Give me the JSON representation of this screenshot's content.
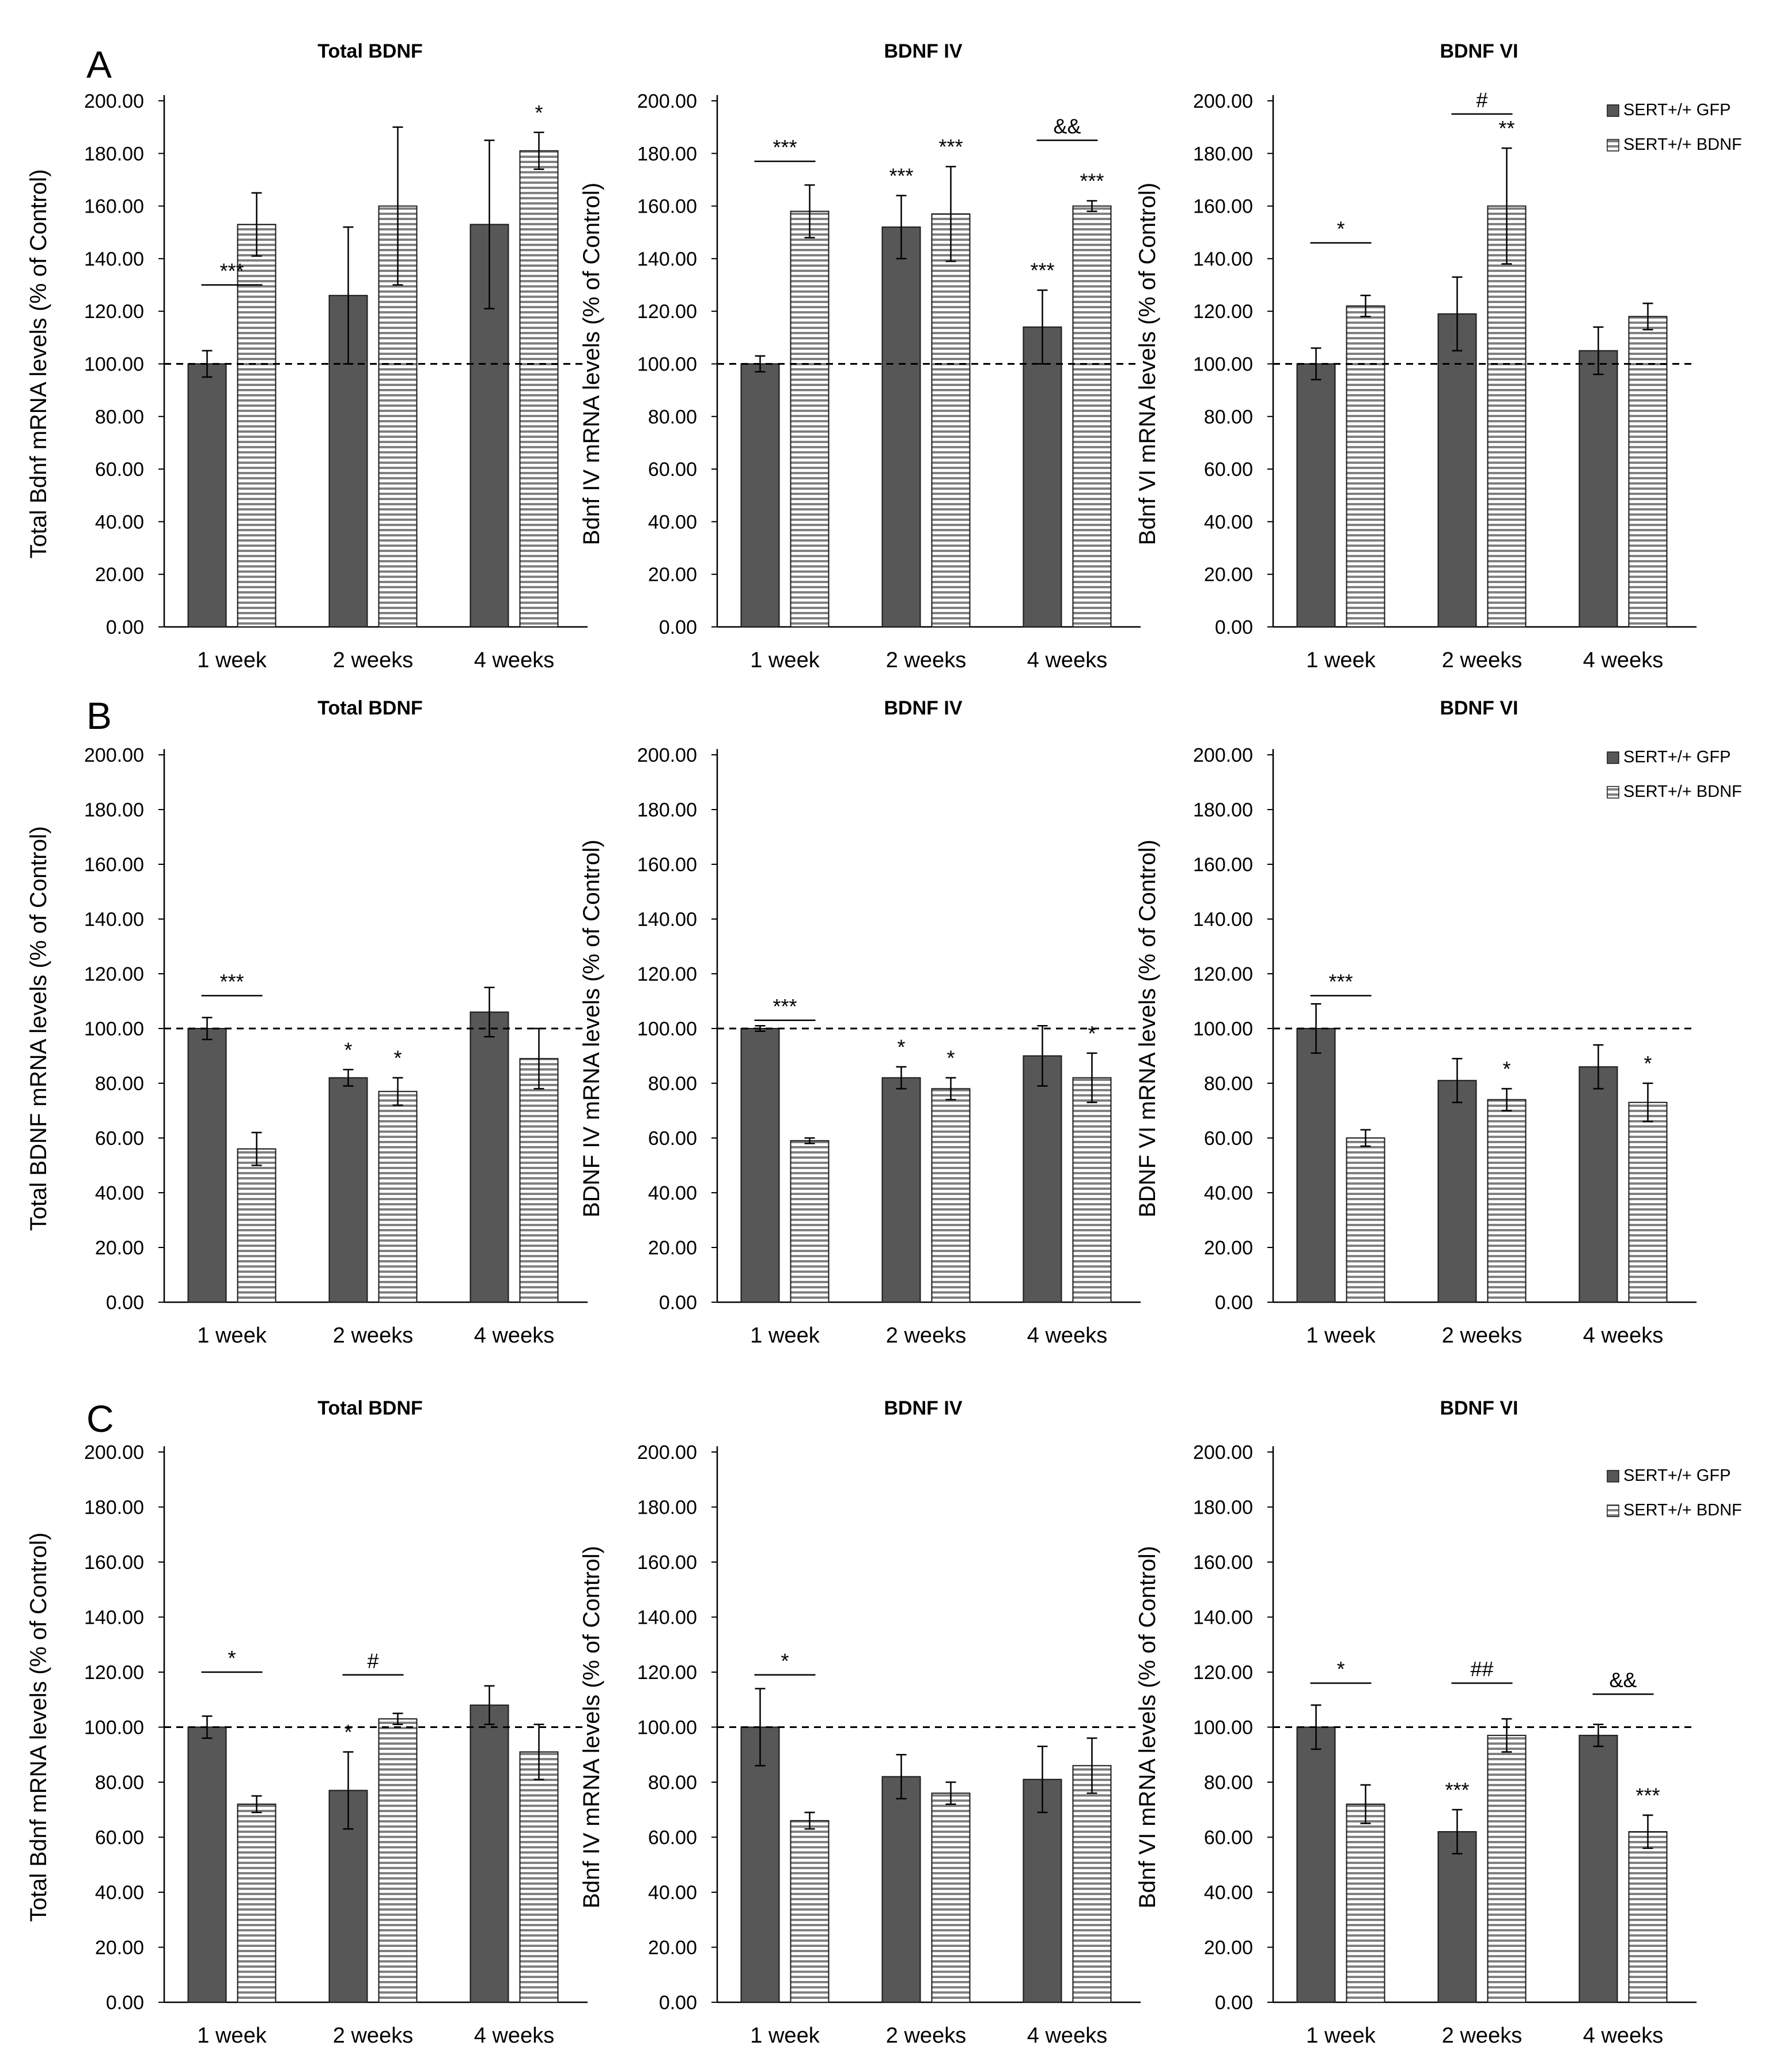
{
  "colors": {
    "gfp": "#575757",
    "bdnf_fill": "#ffffff",
    "bdnf_stripe": "#808080",
    "axis": "#000000"
  },
  "legend": {
    "gfp_label": "SERT+/+ GFP",
    "bdnf_label": "SERT+/+ BDNF",
    "placement": "top-right"
  },
  "chart_data": [
    {
      "type": "bar",
      "panel_label": "A",
      "title": "Total BDNF",
      "ylabel": "Total Bdnf mRNA levels (% of Control)",
      "xlabel": "",
      "categories": [
        "1  week",
        "2  weeks",
        "4 weeks"
      ],
      "ylim": [
        0,
        200
      ],
      "yticks": [
        "0.00",
        "20.00",
        "40.00",
        "60.00",
        "80.00",
        "100.00",
        "120.00",
        "140.00",
        "160.00",
        "180.00",
        "200.00"
      ],
      "reference_line": 100,
      "series": [
        {
          "name": "SERT+/+ GFP",
          "values": [
            100,
            126,
            153
          ],
          "errors": [
            5,
            26,
            32
          ],
          "marks": [
            "",
            "",
            ""
          ]
        },
        {
          "name": "SERT+/+ BDNF",
          "values": [
            153,
            160,
            181
          ],
          "errors": [
            12,
            30,
            7
          ],
          "marks": [
            "",
            "",
            "*"
          ]
        }
      ],
      "brackets": [
        {
          "category": 0,
          "text": "***",
          "y": 130
        }
      ]
    },
    {
      "type": "bar",
      "panel_label": "",
      "title": "BDNF IV",
      "ylabel": "Bdnf IV mRNA levels (% of Control)",
      "xlabel": "",
      "categories": [
        "1  week",
        "2  weeks",
        "4 weeks"
      ],
      "ylim": [
        0,
        200
      ],
      "yticks": [
        "0.00",
        "20.00",
        "40.00",
        "60.00",
        "80.00",
        "100.00",
        "120.00",
        "140.00",
        "160.00",
        "180.00",
        "200.00"
      ],
      "reference_line": 100,
      "series": [
        {
          "name": "SERT+/+ GFP",
          "values": [
            100,
            152,
            114
          ],
          "errors": [
            3,
            12,
            14
          ],
          "marks": [
            "",
            "***",
            "***"
          ]
        },
        {
          "name": "SERT+/+ BDNF",
          "values": [
            158,
            157,
            160
          ],
          "errors": [
            10,
            18,
            2
          ],
          "marks": [
            "",
            "***",
            "***"
          ]
        }
      ],
      "brackets": [
        {
          "category": 0,
          "text": "***",
          "y": 177
        },
        {
          "category": 2,
          "text": "&&",
          "y": 185
        }
      ]
    },
    {
      "type": "bar",
      "panel_label": "",
      "title": "BDNF VI",
      "ylabel": "Bdnf VI  mRNA levels (% of Control)",
      "xlabel": "",
      "categories": [
        "1  week",
        "2  weeks",
        "4 weeks"
      ],
      "ylim": [
        0,
        200
      ],
      "yticks": [
        "0.00",
        "20.00",
        "40.00",
        "60.00",
        "80.00",
        "100.00",
        "120.00",
        "140.00",
        "160.00",
        "180.00",
        "200.00"
      ],
      "reference_line": 100,
      "series": [
        {
          "name": "SERT+/+ GFP",
          "values": [
            100,
            119,
            105
          ],
          "errors": [
            6,
            14,
            9
          ],
          "marks": [
            "",
            "",
            ""
          ]
        },
        {
          "name": "SERT+/+ BDNF",
          "values": [
            122,
            160,
            118
          ],
          "errors": [
            4,
            22,
            5
          ],
          "marks": [
            "",
            "**",
            ""
          ]
        }
      ],
      "brackets": [
        {
          "category": 0,
          "text": "*",
          "y": 146
        },
        {
          "category": 1,
          "text": "#",
          "y": 195
        }
      ]
    },
    {
      "type": "bar",
      "panel_label": "B",
      "title": "Total BDNF",
      "ylabel": "Total BDNF mRNA levels (% of Control)",
      "xlabel": "",
      "categories": [
        "1  week",
        "2  weeks",
        "4 weeks"
      ],
      "ylim": [
        0,
        200
      ],
      "yticks": [
        "0.00",
        "20.00",
        "40.00",
        "60.00",
        "80.00",
        "100.00",
        "120.00",
        "140.00",
        "160.00",
        "180.00",
        "200.00"
      ],
      "reference_line": 100,
      "series": [
        {
          "name": "SERT+/+ GFP",
          "values": [
            100,
            82,
            106
          ],
          "errors": [
            4,
            3,
            9
          ],
          "marks": [
            "",
            "*",
            ""
          ]
        },
        {
          "name": "SERT+/+ BDNF",
          "values": [
            56,
            77,
            89
          ],
          "errors": [
            6,
            5,
            11
          ],
          "marks": [
            "",
            "*",
            ""
          ]
        }
      ],
      "brackets": [
        {
          "category": 0,
          "text": "***",
          "y": 112
        }
      ]
    },
    {
      "type": "bar",
      "panel_label": "",
      "title": "BDNF IV",
      "ylabel": "BDNF IV mRNA levels (% of Control)",
      "xlabel": "",
      "categories": [
        "1  week",
        "2  weeks",
        "4 weeks"
      ],
      "ylim": [
        0,
        200
      ],
      "yticks": [
        "0.00",
        "20.00",
        "40.00",
        "60.00",
        "80.00",
        "100.00",
        "120.00",
        "140.00",
        "160.00",
        "180.00",
        "200.00"
      ],
      "reference_line": 100,
      "series": [
        {
          "name": "SERT+/+ GFP",
          "values": [
            100,
            82,
            90
          ],
          "errors": [
            1,
            4,
            11
          ],
          "marks": [
            "",
            "*",
            ""
          ]
        },
        {
          "name": "SERT+/+ BDNF",
          "values": [
            59,
            78,
            82
          ],
          "errors": [
            1,
            4,
            9
          ],
          "marks": [
            "",
            "*",
            "*"
          ]
        }
      ],
      "brackets": [
        {
          "category": 0,
          "text": "***",
          "y": 103
        }
      ]
    },
    {
      "type": "bar",
      "panel_label": "",
      "title": "BDNF VI",
      "ylabel": "BDNF VI  mRNA levels (% of Control)",
      "xlabel": "",
      "categories": [
        "1  week",
        "2  weeks",
        "4 weeks"
      ],
      "ylim": [
        0,
        200
      ],
      "yticks": [
        "0.00",
        "20.00",
        "40.00",
        "60.00",
        "80.00",
        "100.00",
        "120.00",
        "140.00",
        "160.00",
        "180.00",
        "200.00"
      ],
      "reference_line": 100,
      "series": [
        {
          "name": "SERT+/+ GFP",
          "values": [
            100,
            81,
            86
          ],
          "errors": [
            9,
            8,
            8
          ],
          "marks": [
            "",
            "",
            ""
          ]
        },
        {
          "name": "SERT+/+ BDNF",
          "values": [
            60,
            74,
            73
          ],
          "errors": [
            3,
            4,
            7
          ],
          "marks": [
            "",
            "*",
            "*"
          ]
        }
      ],
      "brackets": [
        {
          "category": 0,
          "text": "***",
          "y": 112
        }
      ]
    },
    {
      "type": "bar",
      "panel_label": "C",
      "title": "Total BDNF",
      "ylabel": "Total Bdnf mRNA levels (% of Control)",
      "xlabel": "",
      "categories": [
        "1  week",
        "2  weeks",
        "4 weeks"
      ],
      "ylim": [
        0,
        200
      ],
      "yticks": [
        "0.00",
        "20.00",
        "40.00",
        "60.00",
        "80.00",
        "100.00",
        "120.00",
        "140.00",
        "160.00",
        "180.00",
        "200.00"
      ],
      "reference_line": 100,
      "series": [
        {
          "name": "SERT+/+ GFP",
          "values": [
            100,
            77,
            108
          ],
          "errors": [
            4,
            14,
            7
          ],
          "marks": [
            "",
            "*",
            ""
          ]
        },
        {
          "name": "SERT+/+ BDNF",
          "values": [
            72,
            103,
            91
          ],
          "errors": [
            3,
            2,
            10
          ],
          "marks": [
            "",
            "",
            ""
          ]
        }
      ],
      "brackets": [
        {
          "category": 0,
          "text": "*",
          "y": 120
        },
        {
          "category": 1,
          "text": "#",
          "y": 119
        }
      ]
    },
    {
      "type": "bar",
      "panel_label": "",
      "title": "BDNF IV",
      "ylabel": "Bdnf IV mRNA levels (% of Control)",
      "xlabel": "",
      "categories": [
        "1  week",
        "2  weeks",
        "4 weeks"
      ],
      "ylim": [
        0,
        200
      ],
      "yticks": [
        "0.00",
        "20.00",
        "40.00",
        "60.00",
        "80.00",
        "100.00",
        "120.00",
        "140.00",
        "160.00",
        "180.00",
        "200.00"
      ],
      "reference_line": 100,
      "series": [
        {
          "name": "SERT+/+ GFP",
          "values": [
            100,
            82,
            81
          ],
          "errors": [
            14,
            8,
            12
          ],
          "marks": [
            "",
            "",
            ""
          ]
        },
        {
          "name": "SERT+/+ BDNF",
          "values": [
            66,
            76,
            86
          ],
          "errors": [
            3,
            4,
            10
          ],
          "marks": [
            "",
            "",
            ""
          ]
        }
      ],
      "brackets": [
        {
          "category": 0,
          "text": "*",
          "y": 119
        }
      ]
    },
    {
      "type": "bar",
      "panel_label": "",
      "title": "BDNF VI",
      "ylabel": "Bdnf VI  mRNA levels (% of Control)",
      "xlabel": "",
      "categories": [
        "1  week",
        "2  weeks",
        "4 weeks"
      ],
      "ylim": [
        0,
        200
      ],
      "yticks": [
        "0.00",
        "20.00",
        "40.00",
        "60.00",
        "80.00",
        "100.00",
        "120.00",
        "140.00",
        "160.00",
        "180.00",
        "200.00"
      ],
      "reference_line": 100,
      "series": [
        {
          "name": "SERT+/+ GFP",
          "values": [
            100,
            62,
            97
          ],
          "errors": [
            8,
            8,
            4
          ],
          "marks": [
            "",
            "***",
            ""
          ]
        },
        {
          "name": "SERT+/+ BDNF",
          "values": [
            72,
            97,
            62
          ],
          "errors": [
            7,
            6,
            6
          ],
          "marks": [
            "",
            "",
            "***"
          ]
        }
      ],
      "brackets": [
        {
          "category": 0,
          "text": "*",
          "y": 116
        },
        {
          "category": 1,
          "text": "##",
          "y": 116
        },
        {
          "category": 2,
          "text": "&&",
          "y": 112
        }
      ]
    }
  ]
}
